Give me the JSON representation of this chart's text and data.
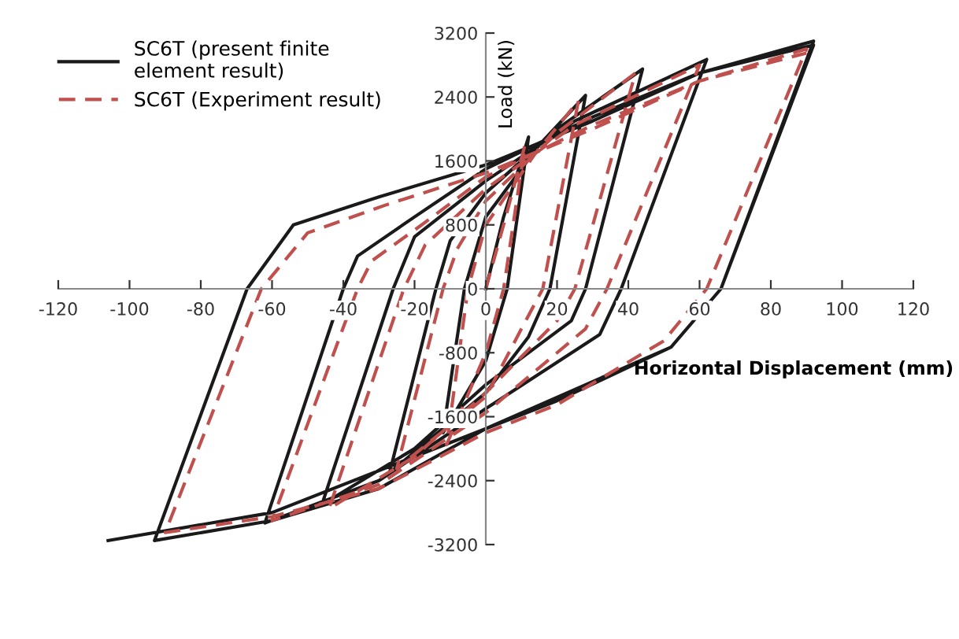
{
  "chart_data": {
    "type": "line",
    "xlabel": "Horizontal Displacement (mm)",
    "ylabel": "Load (kN)",
    "xlim": [
      -120,
      120
    ],
    "ylim": [
      -3200,
      3200
    ],
    "xticks": [
      -120,
      -100,
      -80,
      -60,
      -40,
      -20,
      0,
      20,
      40,
      60,
      80,
      100,
      120
    ],
    "yticks": [
      -3200,
      -2400,
      -1600,
      -800,
      0,
      800,
      1600,
      2400,
      3200
    ],
    "grid": false,
    "legend": "top left",
    "marker": "none",
    "series": [
      {
        "name": "SC6T (present finite\nelement result)",
        "color": "#1a1a1a",
        "line_style": "solid",
        "x": [
          0,
          5,
          12,
          6,
          0,
          -12,
          -6,
          0,
          15,
          28,
          18,
          12,
          0,
          -27,
          -14,
          -10,
          0,
          20,
          44,
          28,
          24,
          0,
          -20,
          -46,
          -26,
          -20,
          0,
          25,
          62,
          38,
          32,
          0,
          -30,
          -62,
          -40,
          -36,
          -20,
          0,
          30,
          60,
          92,
          66,
          52,
          20,
          0,
          -30,
          -60,
          -93,
          -67,
          -54,
          -30,
          0,
          30,
          60,
          92,
          66,
          52,
          0,
          -60,
          -106
        ],
        "values": [
          0,
          900,
          1900,
          0,
          -900,
          -1800,
          0,
          900,
          1800,
          2420,
          0,
          -600,
          -1300,
          -2300,
          0,
          600,
          1200,
          2000,
          2750,
          0,
          -400,
          -1200,
          -2000,
          -2700,
          0,
          650,
          1350,
          2100,
          2870,
          0,
          -570,
          -1500,
          -2400,
          -2930,
          0,
          410,
          900,
          1500,
          2150,
          2700,
          3100,
          0,
          -730,
          -1400,
          -1750,
          -2500,
          -2900,
          -3150,
          0,
          800,
          1150,
          1550,
          2100,
          2700,
          3050,
          0,
          -730,
          -1750,
          -2800,
          -3150
        ]
      },
      {
        "name": "SC6T (Experiment result)",
        "color": "#c0504d",
        "line_style": "dashed",
        "x": [
          0,
          5,
          11,
          5,
          0,
          -11,
          -5,
          0,
          14,
          26,
          16,
          10,
          0,
          -25,
          -12,
          -8,
          0,
          20,
          42,
          25,
          20,
          0,
          -20,
          -44,
          -23,
          -17,
          0,
          25,
          60,
          34,
          28,
          0,
          -30,
          -60,
          -36,
          -32,
          -18,
          0,
          30,
          60,
          90,
          62,
          50,
          20,
          0,
          -30,
          -60,
          -90,
          -63,
          -50,
          -28,
          0,
          30,
          60,
          90
        ],
        "values": [
          0,
          800,
          1800,
          0,
          -800,
          -1950,
          0,
          800,
          1700,
          2350,
          0,
          -500,
          -1350,
          -2250,
          0,
          500,
          1100,
          1950,
          2700,
          0,
          -400,
          -1300,
          -2100,
          -2750,
          0,
          550,
          1250,
          2050,
          2800,
          0,
          -500,
          -1550,
          -2450,
          -2900,
          0,
          350,
          800,
          1400,
          2050,
          2600,
          3000,
          0,
          -650,
          -1450,
          -1800,
          -2500,
          -2850,
          -3050,
          0,
          700,
          1050,
          1450,
          2000,
          2600,
          2950
        ]
      }
    ]
  }
}
